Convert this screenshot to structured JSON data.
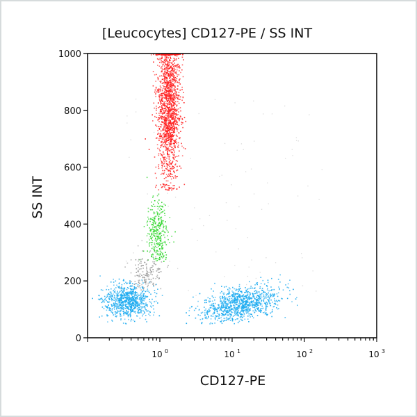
{
  "chart_data": {
    "type": "scatter",
    "title": "[Leucocytes] CD127-PE / SS INT",
    "xlabel": "CD127-PE",
    "ylabel": "SS INT",
    "x_scale": "log",
    "xlim": [
      0.1,
      1000
    ],
    "ylim": [
      0,
      1000
    ],
    "x_ticks": [
      {
        "value": 1,
        "label": "10",
        "exp": "0"
      },
      {
        "value": 10,
        "label": "10",
        "exp": "1"
      },
      {
        "value": 100,
        "label": "10",
        "exp": "2"
      },
      {
        "value": 1000,
        "label": "10",
        "exp": "3"
      }
    ],
    "y_ticks": [
      0,
      200,
      400,
      600,
      800,
      1000
    ],
    "grid": false,
    "populations": [
      {
        "color": "#ff1a1a",
        "x_center": 1.3,
        "x_log_sd": 0.08,
        "y_center": 820,
        "y_sd": 140,
        "y_min": 520,
        "count": 1600
      },
      {
        "color": "#2ed62a",
        "x_center": 0.9,
        "x_log_sd": 0.07,
        "y_center": 370,
        "y_sd": 55,
        "y_min": 270,
        "count": 320
      },
      {
        "color": "#9a9a9a",
        "x_center": 0.65,
        "x_log_sd": 0.12,
        "y_center": 230,
        "y_sd": 30,
        "y_min": 170,
        "count": 160
      },
      {
        "color": "#1aaaf0",
        "x_center": 0.35,
        "x_log_sd": 0.16,
        "y_center": 130,
        "y_sd": 28,
        "y_min": 50,
        "count": 800
      },
      {
        "color": "#1aaaf0",
        "x_center": 13,
        "x_log_sd": 0.27,
        "y_center": 120,
        "y_sd": 28,
        "y_min": 50,
        "count": 1000
      }
    ]
  }
}
